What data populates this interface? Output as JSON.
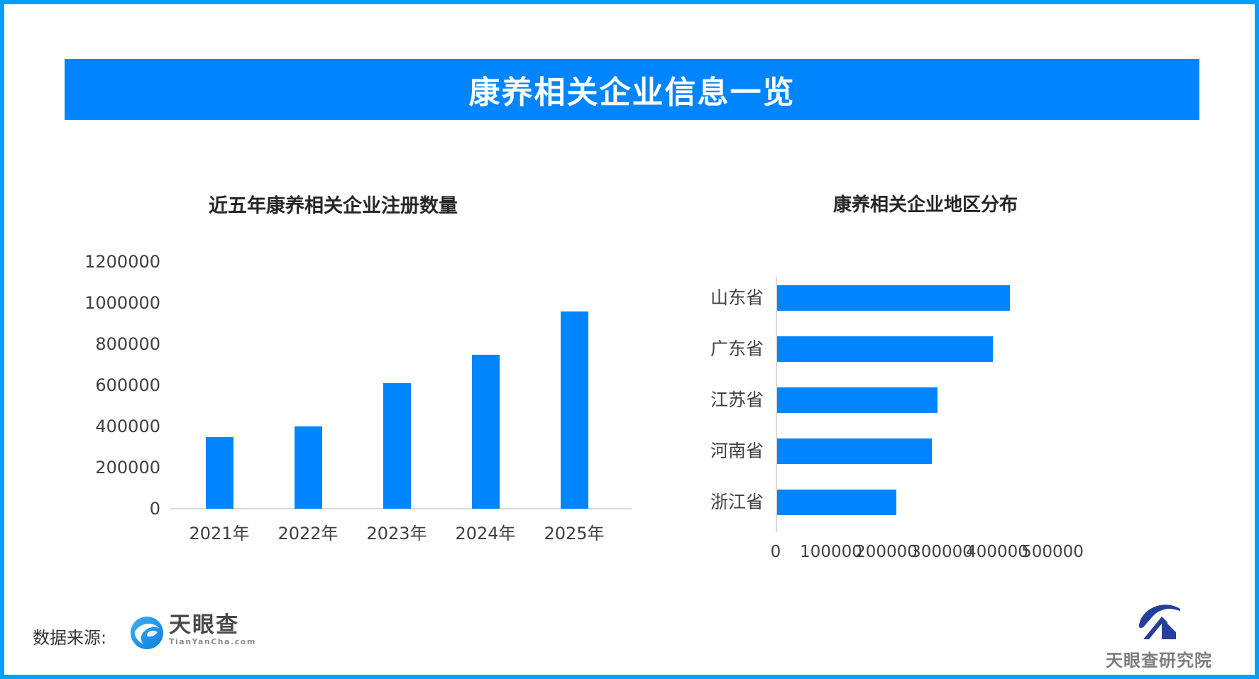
{
  "banner": {
    "title": "康养相关企业信息一览"
  },
  "chart_data": [
    {
      "id": "registrations-by-year",
      "type": "bar",
      "orientation": "vertical",
      "title": "近五年康养相关企业注册数量",
      "categories": [
        "2021年",
        "2022年",
        "2023年",
        "2024年",
        "2025年"
      ],
      "values": [
        350000,
        400000,
        610000,
        750000,
        960000
      ],
      "ylim": [
        0,
        1200000
      ],
      "ytick_interval": 200000,
      "ytick_labels": [
        "1200000",
        "1000000",
        "800000",
        "600000",
        "400000",
        "200000",
        "0"
      ],
      "grid": false,
      "legend": "none",
      "bar_color": "#0085FF"
    },
    {
      "id": "companies-by-region",
      "type": "bar",
      "orientation": "horizontal",
      "title": "康养相关企业地区分布",
      "categories": [
        "山东省",
        "广东省",
        "江苏省",
        "河南省",
        "浙江省"
      ],
      "values": [
        420000,
        390000,
        290000,
        280000,
        215000
      ],
      "xlim": [
        0,
        500000
      ],
      "xtick_interval": 100000,
      "xtick_labels": [
        "0",
        "100000",
        "200000",
        "300000",
        "400000",
        "500000"
      ],
      "grid": false,
      "legend": "none",
      "bar_color": "#0085FF"
    }
  ],
  "footer": {
    "source_label": "数据来源:",
    "tianyancha_name": "天眼查",
    "tianyancha_domain": "TianYanCha.com",
    "institute_name": "天眼查研究院"
  },
  "colors": {
    "frame_border": "#009EFF",
    "banner_bg": "#0085FF",
    "bar": "#0085FF",
    "axis_line": "#D9D9D9",
    "banner_text": "#FFFFFF",
    "title_text": "#262626",
    "axis_text": "#404040",
    "footer_text": "#333333",
    "tianyancha_blue": "#1D9BEF",
    "institute_navy": "#24409A",
    "logo_text_gray": "#7D7D7D"
  }
}
